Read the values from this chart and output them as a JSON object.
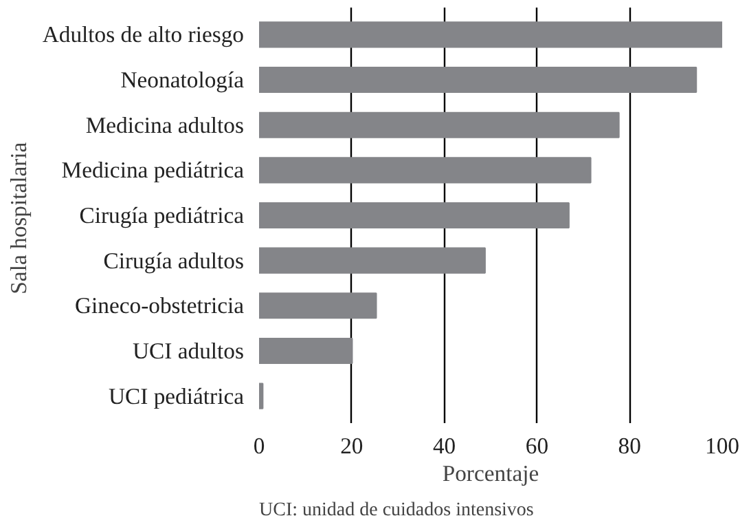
{
  "chart_data": {
    "type": "bar",
    "orientation": "horizontal",
    "categories": [
      "Adultos de alto riesgo",
      "Neonatología",
      "Medicina adultos",
      "Medicina pediátrica",
      "Cirugía pediátrica",
      "Cirugía adultos",
      "Gineco-obstetricia",
      "UCI adultos",
      "UCI pediátrica"
    ],
    "values": [
      100,
      94.4,
      77.7,
      71.6,
      66.9,
      48.8,
      25.3,
      20.1,
      0.8
    ],
    "color": "#848589",
    "xlim": [
      0,
      100
    ],
    "xticks": [
      0,
      20,
      40,
      60,
      80,
      100
    ],
    "xlabel": "Porcentaje",
    "ylabel": "Sala  hospitalaria",
    "grid": "x",
    "annotations": [
      "UCI: unidad de cuidados intensivos"
    ]
  }
}
